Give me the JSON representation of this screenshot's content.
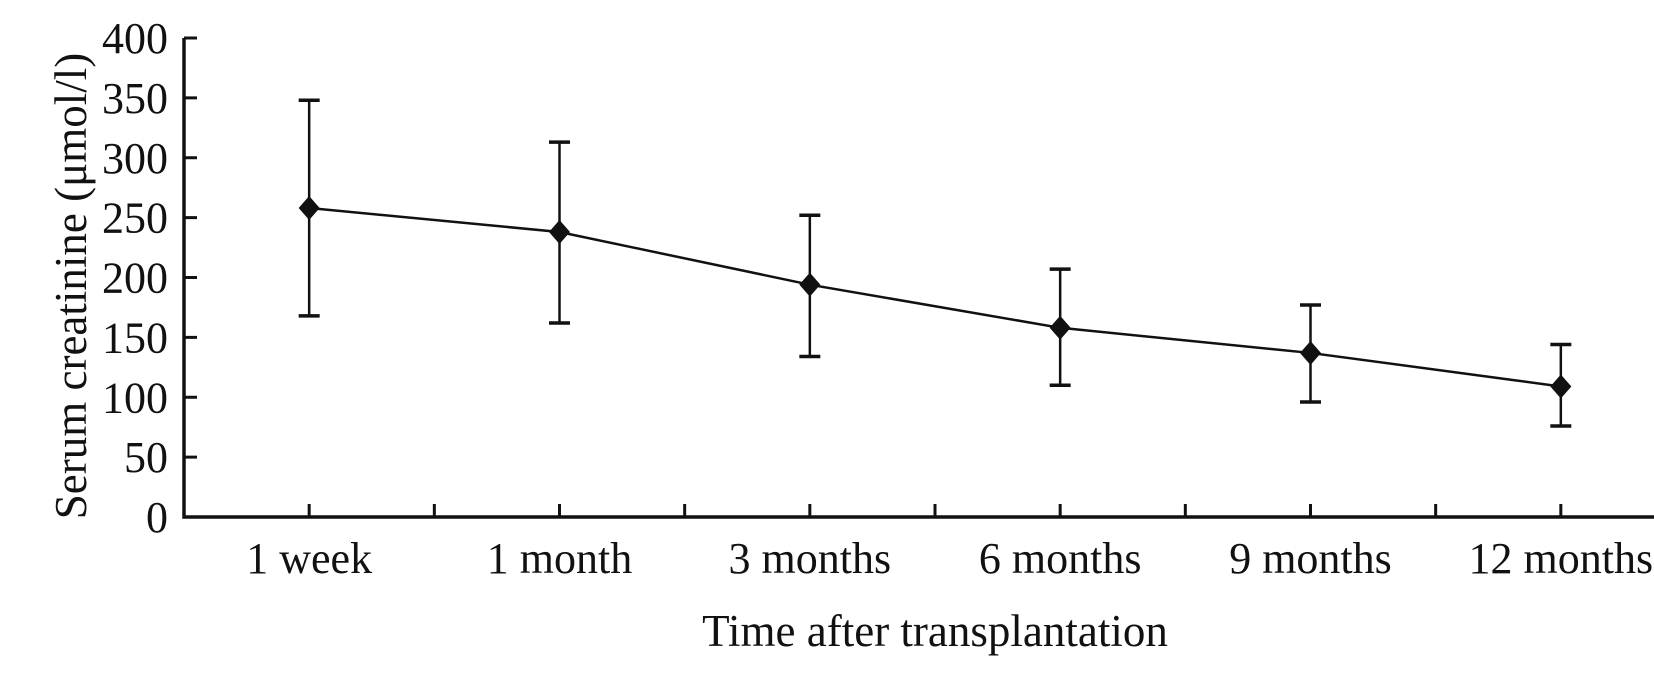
{
  "chart_data": {
    "type": "line",
    "title": "",
    "xlabel": "Time after transplantation",
    "ylabel": "Serum creatinine (μmol/l)",
    "categories": [
      "1 week",
      "1 month",
      "3 months",
      "6 months",
      "9 months",
      "12 months"
    ],
    "values": [
      258,
      238,
      194,
      158,
      137,
      109
    ],
    "error_upper": [
      348,
      313,
      252,
      207,
      177,
      144
    ],
    "error_lower": [
      168,
      162,
      134,
      110,
      96,
      76
    ],
    "ylim": [
      0,
      400
    ],
    "ytick_interval": 50,
    "yticks": [
      0,
      50,
      100,
      150,
      200,
      250,
      300,
      350,
      400
    ],
    "x_minor_ticks_at_midpoints": true,
    "marker": "filled-diamond",
    "error_bars": true,
    "grid": false,
    "legend": "none",
    "ink_color": "#111111",
    "background_color": "#ffffff"
  }
}
